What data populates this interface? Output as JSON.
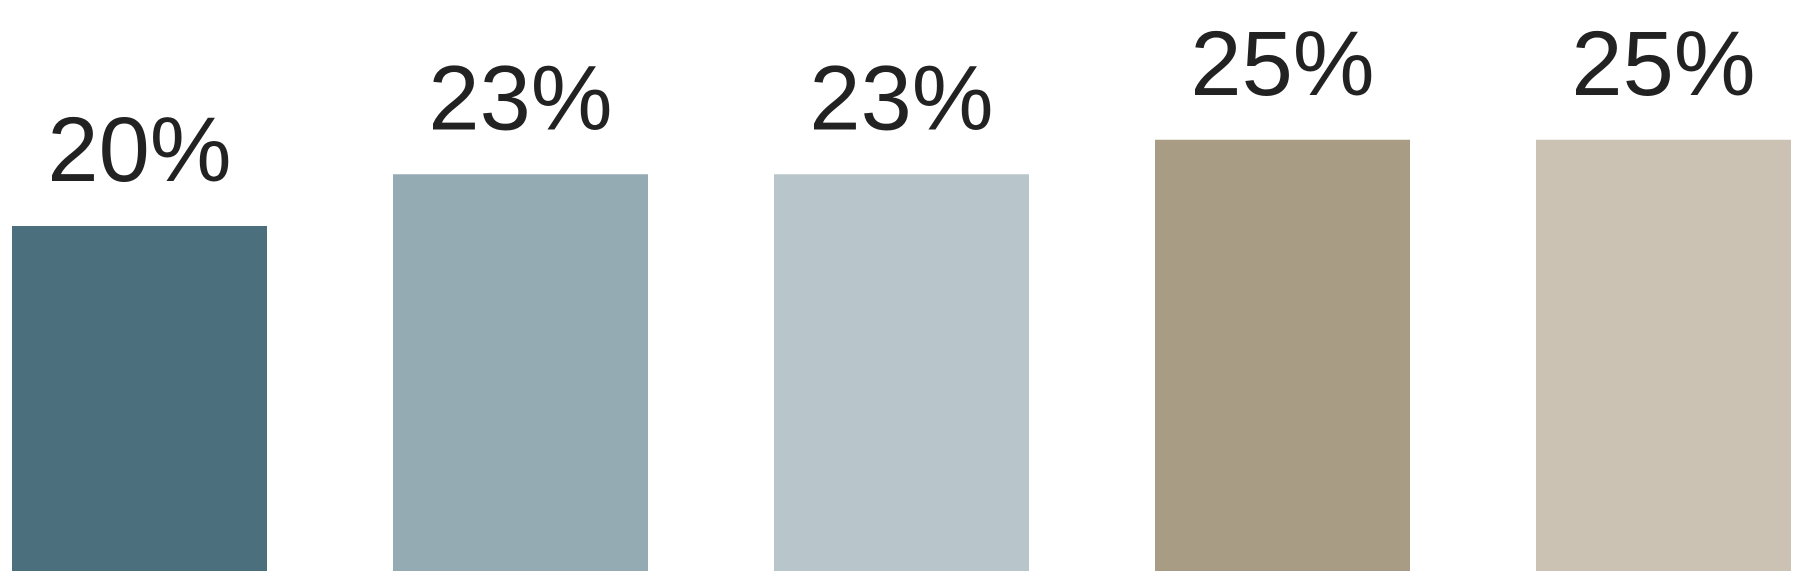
{
  "chart_data": {
    "type": "bar",
    "values": [
      20,
      23,
      23,
      25,
      25
    ],
    "value_labels": [
      "20%",
      "23%",
      "23%",
      "25%",
      "25%"
    ],
    "colors": [
      "#4b6f7c",
      "#94abb3",
      "#b8c6cc",
      "#a89c85",
      "#cbc2b4"
    ]
  }
}
